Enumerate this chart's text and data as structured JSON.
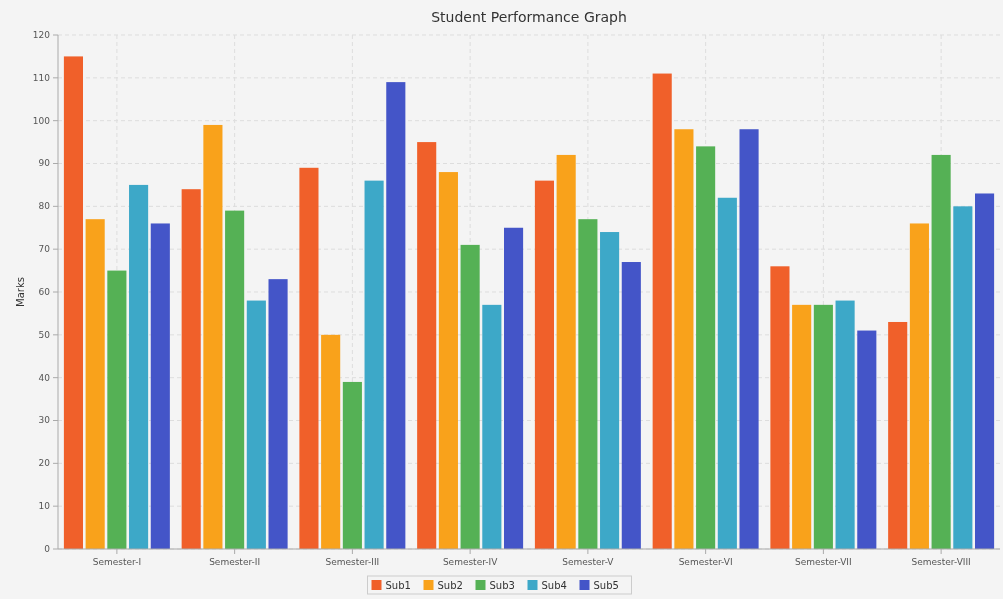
{
  "chart_data": {
    "type": "bar",
    "title": "Student Performance Graph",
    "ylabel": "Marks",
    "categories": [
      "Semester-I",
      "Semester-II",
      "Semester-III",
      "Semester-IV",
      "Semester-V",
      "Semester-VI",
      "Semester-VII",
      "Semester-VIII"
    ],
    "series": [
      {
        "name": "Sub1",
        "color": "#f0602a",
        "values": [
          115,
          84,
          89,
          95,
          86,
          111,
          66,
          53
        ]
      },
      {
        "name": "Sub2",
        "color": "#f9a21b",
        "values": [
          77,
          99,
          50,
          88,
          92,
          98,
          57,
          76
        ]
      },
      {
        "name": "Sub3",
        "color": "#55b155",
        "values": [
          65,
          79,
          39,
          71,
          77,
          94,
          57,
          92
        ]
      },
      {
        "name": "Sub4",
        "color": "#3da8c8",
        "values": [
          85,
          58,
          86,
          57,
          74,
          82,
          58,
          80
        ]
      },
      {
        "name": "Sub5",
        "color": "#4455c8",
        "values": [
          76,
          63,
          109,
          75,
          67,
          98,
          51,
          83
        ]
      }
    ],
    "ylim": [
      0,
      120
    ],
    "yticks": [
      0,
      10,
      20,
      30,
      40,
      50,
      60,
      70,
      80,
      90,
      100,
      110,
      120
    ],
    "grid": true,
    "legend": "bottom"
  }
}
